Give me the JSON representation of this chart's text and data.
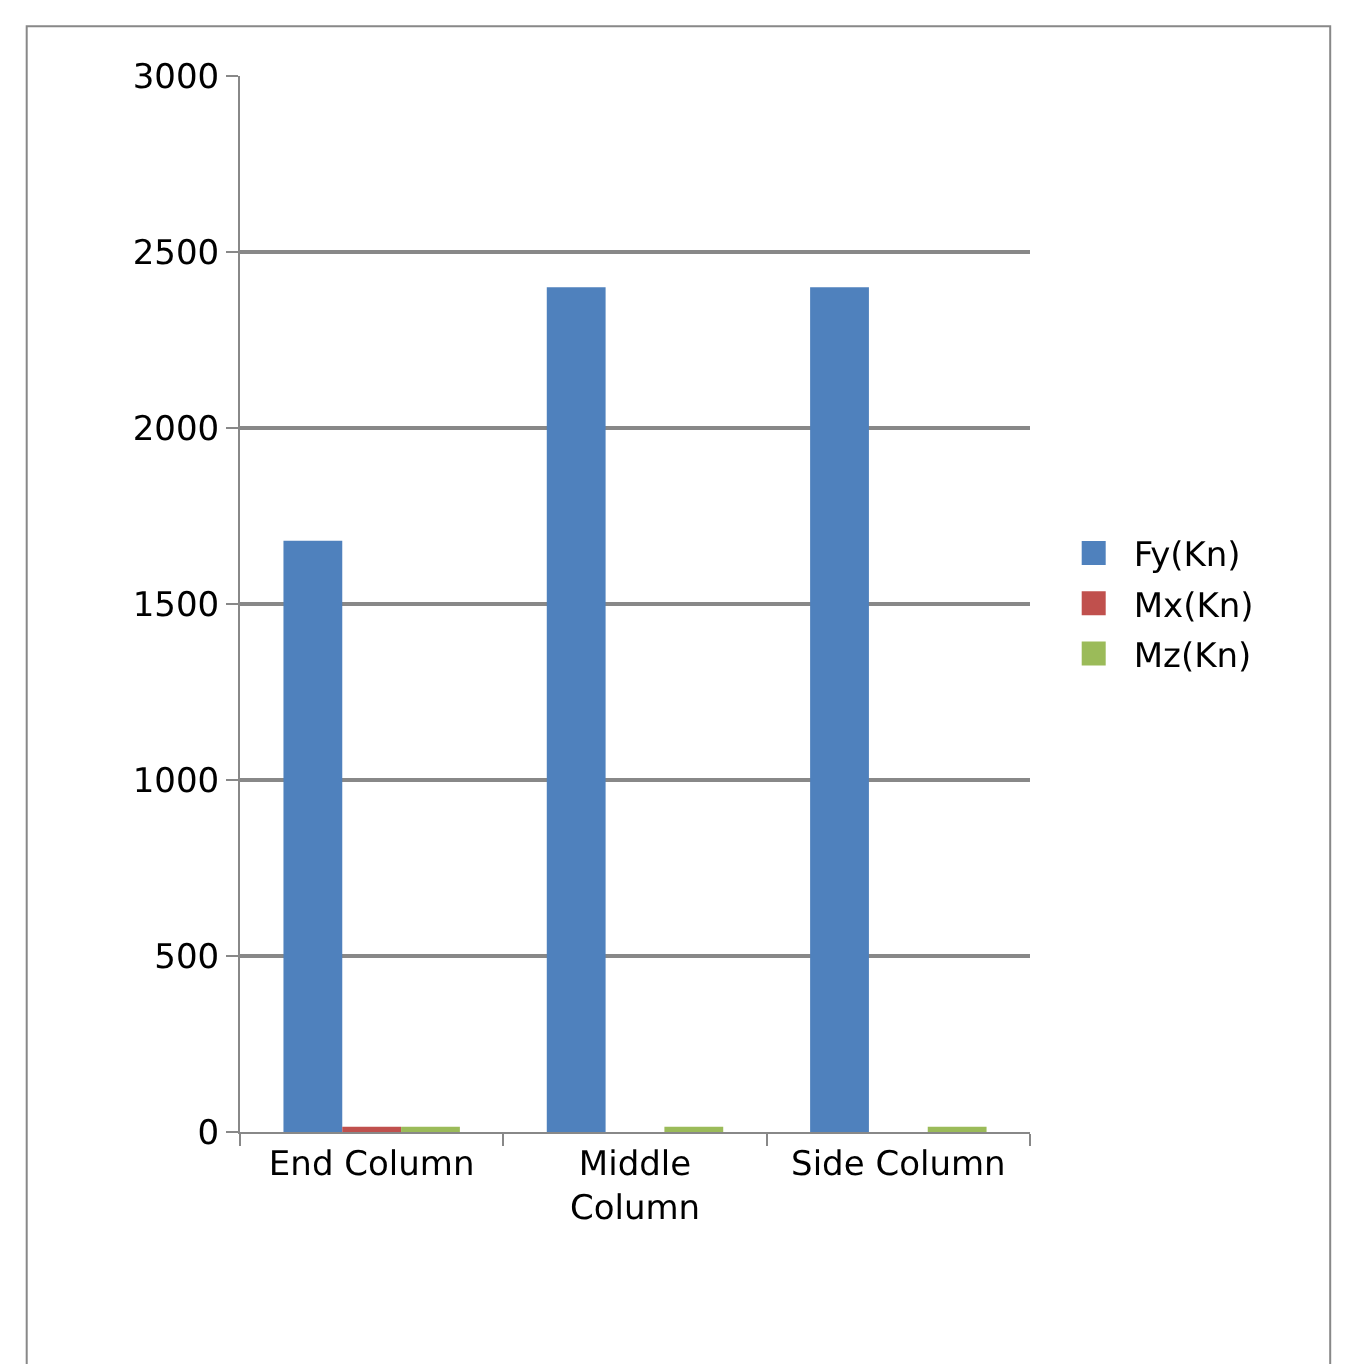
{
  "chart_data": {
    "type": "bar",
    "categories": [
      "End Column",
      "Middle Column",
      "Side Column"
    ],
    "series": [
      {
        "name": "Fy(Kn)",
        "color": "#4f81bd",
        "values": [
          1680,
          2400,
          2400
        ]
      },
      {
        "name": "Mx(Kn)",
        "color": "#c0504d",
        "values": [
          15,
          0,
          0
        ]
      },
      {
        "name": "Mz(Kn)",
        "color": "#9bbb59",
        "values": [
          15,
          15,
          15
        ]
      }
    ],
    "ylim": [
      0,
      3000
    ],
    "yticks": [
      0,
      500,
      1000,
      1500,
      2000,
      2500,
      3000
    ],
    "grid": "y",
    "legend": "right"
  }
}
